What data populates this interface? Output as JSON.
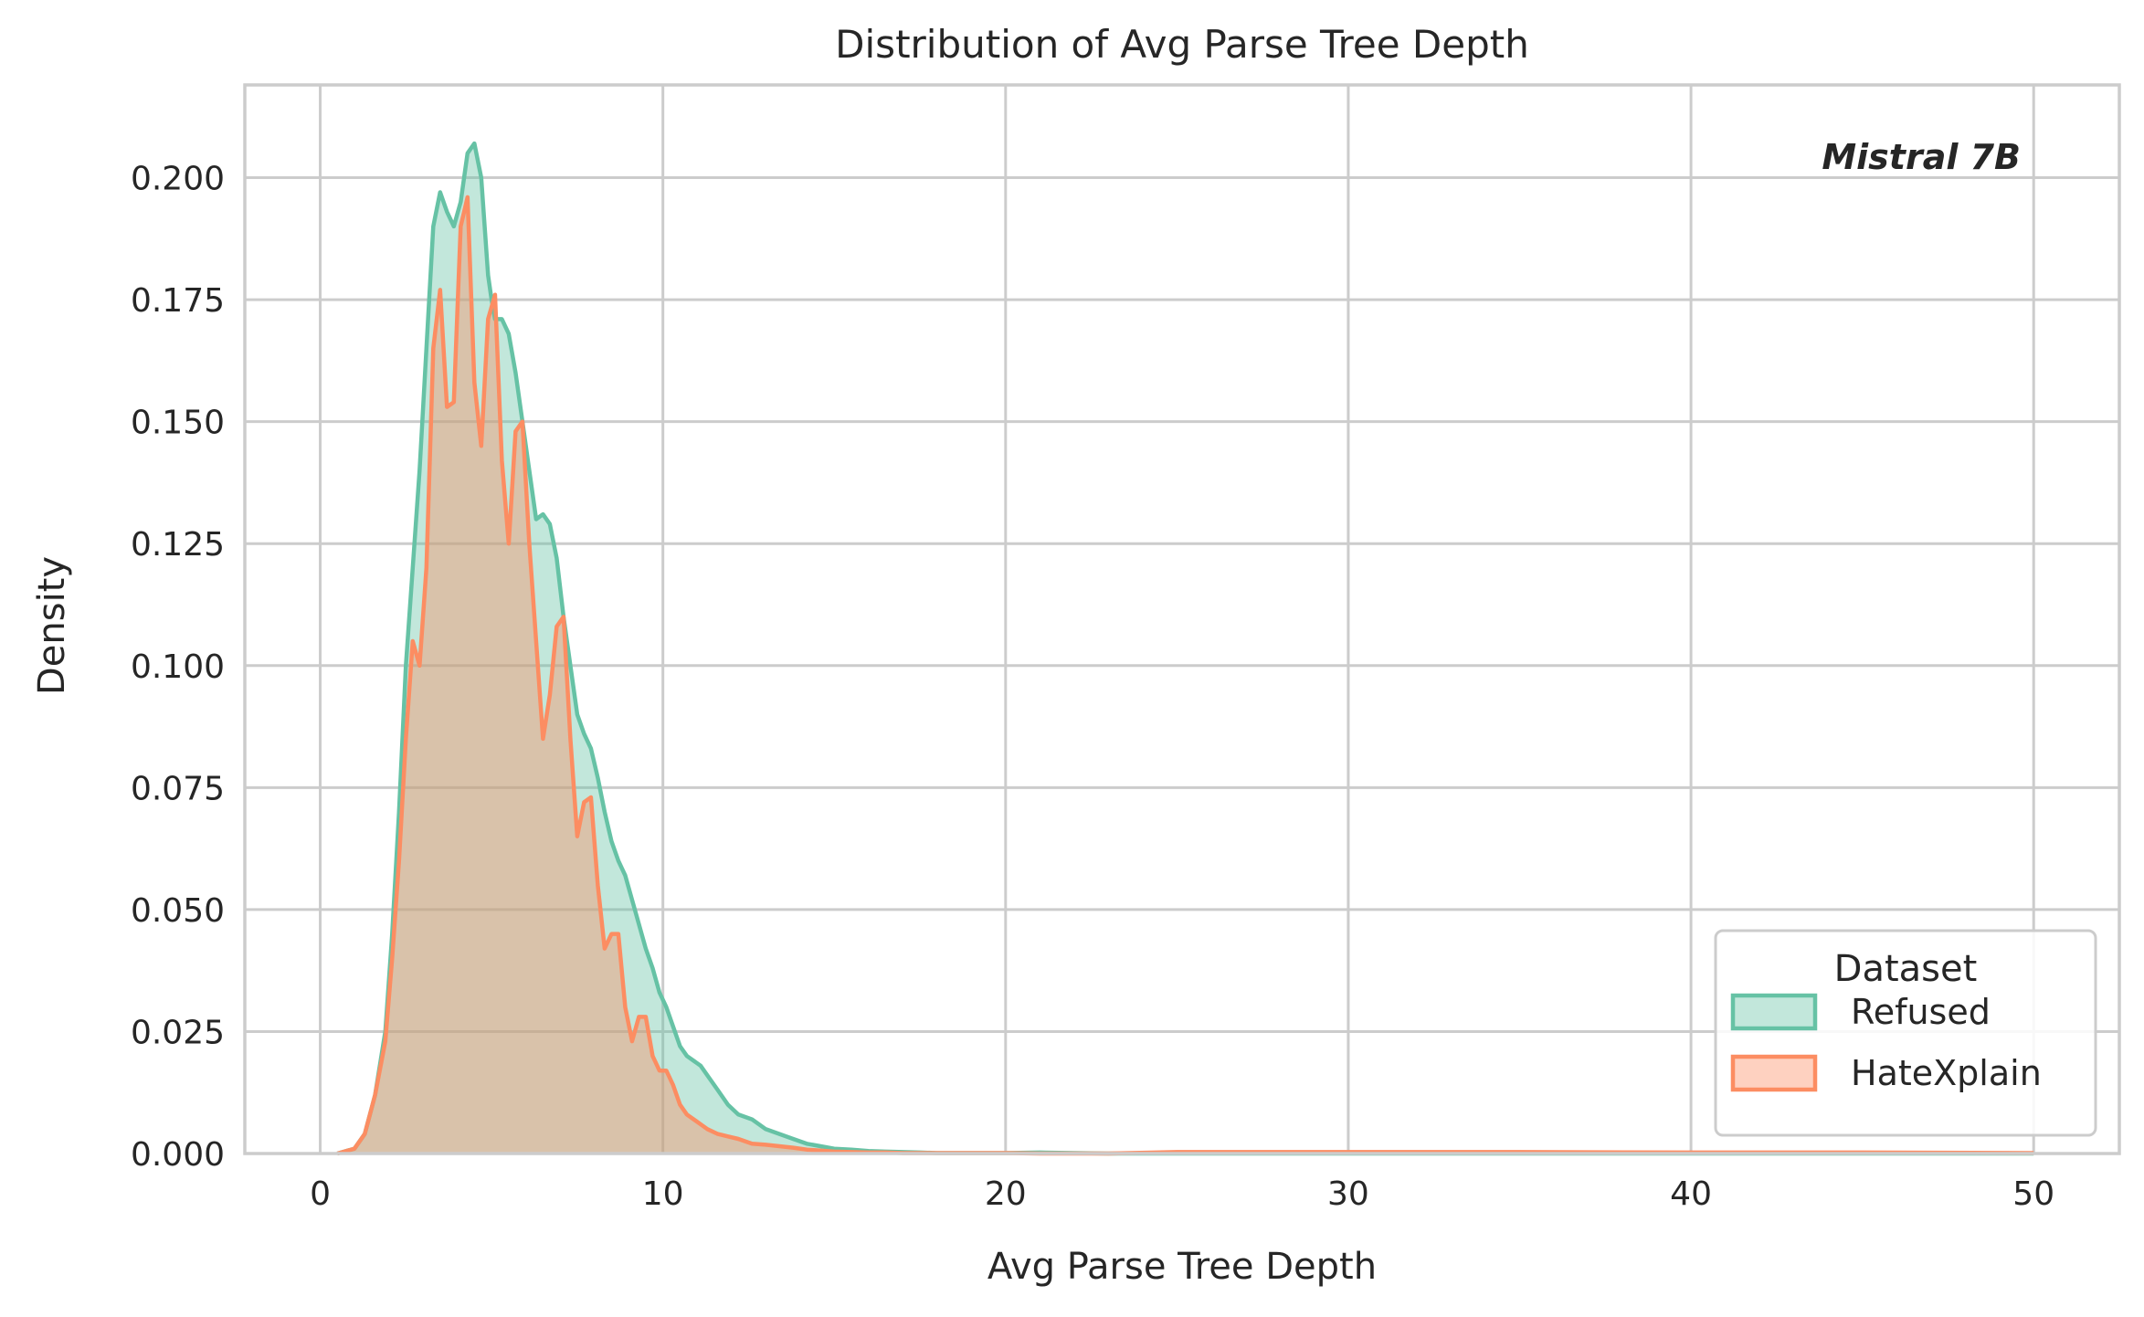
{
  "chart_data": {
    "type": "area",
    "title": "Distribution of Avg Parse Tree Depth",
    "xlabel": "Avg Parse Tree Depth",
    "ylabel": "Density",
    "xlim": [
      -2.2,
      52.5
    ],
    "ylim": [
      0,
      0.219
    ],
    "x_ticks": [
      0,
      10,
      20,
      30,
      40,
      50
    ],
    "y_ticks": [
      0.0,
      0.025,
      0.05,
      0.075,
      0.1,
      0.125,
      0.15,
      0.175,
      0.2
    ],
    "x_tick_labels": [
      "0",
      "10",
      "20",
      "30",
      "40",
      "50"
    ],
    "y_tick_labels": [
      "0.000",
      "0.025",
      "0.050",
      "0.075",
      "0.100",
      "0.125",
      "0.150",
      "0.175",
      "0.200"
    ],
    "grid": true,
    "annotation": "Mistral 7B",
    "legend": {
      "title": "Dataset",
      "position": "lower-right"
    },
    "series": [
      {
        "name": "Refused",
        "color": "#66c2a5",
        "x": [
          0.5,
          1.0,
          1.3,
          1.6,
          1.9,
          2.1,
          2.3,
          2.5,
          2.7,
          2.9,
          3.1,
          3.3,
          3.5,
          3.7,
          3.9,
          4.1,
          4.3,
          4.5,
          4.7,
          4.9,
          5.0,
          5.1,
          5.3,
          5.5,
          5.7,
          5.9,
          6.1,
          6.3,
          6.5,
          6.7,
          6.9,
          7.1,
          7.3,
          7.5,
          7.7,
          7.9,
          8.1,
          8.3,
          8.5,
          8.7,
          8.9,
          9.1,
          9.3,
          9.5,
          9.7,
          9.9,
          10.1,
          10.3,
          10.5,
          10.7,
          10.9,
          11.1,
          11.3,
          11.6,
          11.9,
          12.2,
          12.6,
          13.0,
          13.4,
          13.8,
          14.2,
          14.6,
          15.0,
          15.5,
          16.0,
          16.5,
          17.0,
          17.5,
          18.0,
          19.0,
          20.0,
          21.0,
          22.0,
          23.0,
          25.0,
          30.0,
          40.0,
          50.0
        ],
        "y": [
          0.0,
          0.001,
          0.004,
          0.012,
          0.025,
          0.045,
          0.07,
          0.1,
          0.12,
          0.14,
          0.165,
          0.19,
          0.197,
          0.193,
          0.19,
          0.195,
          0.205,
          0.207,
          0.2,
          0.18,
          0.175,
          0.171,
          0.171,
          0.168,
          0.16,
          0.15,
          0.14,
          0.13,
          0.131,
          0.129,
          0.122,
          0.11,
          0.1,
          0.09,
          0.086,
          0.083,
          0.077,
          0.07,
          0.064,
          0.06,
          0.057,
          0.052,
          0.047,
          0.042,
          0.038,
          0.033,
          0.03,
          0.026,
          0.022,
          0.02,
          0.019,
          0.018,
          0.016,
          0.013,
          0.01,
          0.008,
          0.007,
          0.005,
          0.004,
          0.003,
          0.002,
          0.0015,
          0.001,
          0.0008,
          0.0005,
          0.0004,
          0.0003,
          0.0002,
          0.0001,
          0.0001,
          0.0001,
          0.0002,
          0.0001,
          0.0,
          0.0,
          0.0,
          0.0,
          0.0
        ]
      },
      {
        "name": "HateXplain",
        "color": "#fc8d62",
        "x": [
          0.5,
          1.0,
          1.3,
          1.6,
          1.9,
          2.1,
          2.3,
          2.5,
          2.7,
          2.9,
          3.1,
          3.3,
          3.5,
          3.7,
          3.9,
          4.1,
          4.3,
          4.5,
          4.7,
          4.9,
          5.1,
          5.3,
          5.5,
          5.7,
          5.9,
          6.1,
          6.3,
          6.5,
          6.7,
          6.9,
          7.1,
          7.3,
          7.5,
          7.7,
          7.9,
          8.1,
          8.3,
          8.5,
          8.7,
          8.9,
          9.1,
          9.3,
          9.5,
          9.7,
          9.9,
          10.1,
          10.3,
          10.5,
          10.7,
          10.9,
          11.1,
          11.3,
          11.6,
          11.9,
          12.2,
          12.6,
          13.0,
          13.4,
          13.8,
          14.2,
          14.6,
          15.0,
          15.5,
          16.0,
          16.5,
          17.0,
          17.5,
          18.0,
          19.0,
          20.0,
          21.0,
          22.0,
          23.0,
          25.0,
          30.0,
          35.0,
          40.0,
          45.0,
          50.0
        ],
        "y": [
          0.0,
          0.001,
          0.004,
          0.012,
          0.023,
          0.04,
          0.06,
          0.085,
          0.105,
          0.1,
          0.12,
          0.165,
          0.177,
          0.153,
          0.154,
          0.19,
          0.196,
          0.158,
          0.145,
          0.171,
          0.176,
          0.142,
          0.125,
          0.148,
          0.15,
          0.125,
          0.105,
          0.085,
          0.094,
          0.108,
          0.11,
          0.085,
          0.065,
          0.072,
          0.073,
          0.055,
          0.042,
          0.045,
          0.045,
          0.03,
          0.023,
          0.028,
          0.028,
          0.02,
          0.017,
          0.017,
          0.014,
          0.01,
          0.008,
          0.007,
          0.006,
          0.005,
          0.004,
          0.0035,
          0.003,
          0.002,
          0.0018,
          0.0015,
          0.0012,
          0.0008,
          0.0006,
          0.0004,
          0.0003,
          0.0002,
          0.0002,
          0.0001,
          0.0001,
          0.0001,
          0.0001,
          0.0001,
          0.0,
          0.0,
          0.0,
          0.0003,
          0.0003,
          0.0003,
          0.0002,
          0.0002,
          0.0001
        ]
      }
    ]
  }
}
